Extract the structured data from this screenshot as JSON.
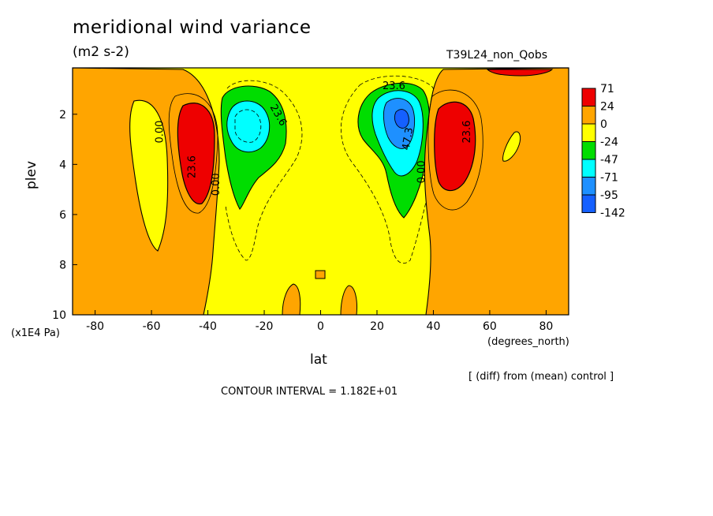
{
  "chart_data": {
    "type": "contour",
    "title": "meridional wind variance",
    "units": "(m2 s-2)",
    "run_name": "T39L24_non_Qobs",
    "xlabel": "lat",
    "xunit": "(degrees_north)",
    "ylabel": "plev",
    "yunit": "(x1E4 Pa)",
    "x_ticks": [
      "-80",
      "-60",
      "-40",
      "-20",
      "0",
      "20",
      "40",
      "60",
      "80"
    ],
    "x_tick_values": [
      -80,
      -60,
      -40,
      -20,
      0,
      20,
      40,
      60,
      80
    ],
    "y_ticks": [
      "2",
      "4",
      "6",
      "8",
      "10"
    ],
    "y_tick_values": [
      2,
      4,
      6,
      8,
      10
    ],
    "xlim": [
      -88,
      88
    ],
    "ylim": [
      10,
      0.15
    ],
    "colorbar": {
      "labels": [
        "71",
        "24",
        "0",
        "-24",
        "-47",
        "-71",
        "-95",
        "-142"
      ],
      "colors": [
        "#ee0000",
        "#ffa500",
        "#ffff00",
        "#00dd00",
        "#00ffff",
        "#1e90ff",
        "#1560ff"
      ]
    },
    "contour_labels": [
      {
        "text": "0.00",
        "lat": -56,
        "plev": 2.7,
        "rotate": -90
      },
      {
        "text": "23.6",
        "lat": -44.5,
        "plev": 4.1,
        "rotate": -90
      },
      {
        "text": "0.00",
        "lat": -36,
        "plev": 4.8,
        "rotate": -90
      },
      {
        "text": "23.6",
        "lat": -16,
        "plev": 2.1,
        "rotate": 60
      },
      {
        "text": "23.6",
        "lat": 26,
        "plev": 1.0,
        "rotate": 0
      },
      {
        "text": "47.3",
        "lat": 32,
        "plev": 3.0,
        "rotate": -80
      },
      {
        "text": "0.00",
        "lat": 37,
        "plev": 4.3,
        "rotate": -90
      },
      {
        "text": "23.6",
        "lat": 53,
        "plev": 2.7,
        "rotate": -90
      }
    ],
    "annotations": [
      "[ (diff) from (mean) control ]",
      "CONTOUR INTERVAL = 1.182E+01"
    ]
  }
}
